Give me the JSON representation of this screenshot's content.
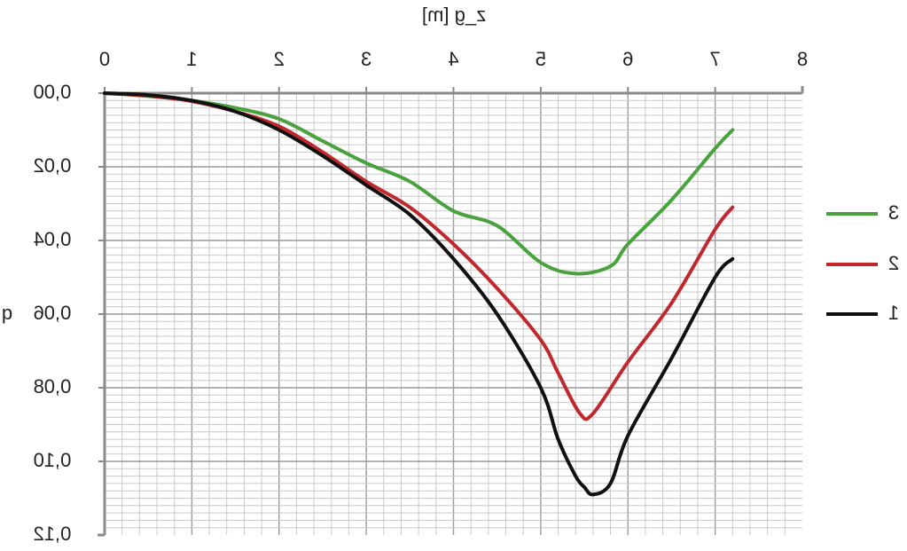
{
  "chart_data": {
    "type": "line",
    "xlabel": "z_g [m]",
    "ylabel": "q",
    "xlim": [
      0,
      8
    ],
    "ylim": [
      0,
      0.12
    ],
    "x_ticks": [
      "0",
      "1",
      "2",
      "3",
      "4",
      "5",
      "6",
      "7",
      "8"
    ],
    "y_ticks": [
      "0,00",
      "0,02",
      "0,04",
      "0,06",
      "0,08",
      "0,10",
      "0,12"
    ],
    "grid": true,
    "mirrored": true,
    "legend_position": "right",
    "series": [
      {
        "name": "1",
        "color": "#111111",
        "x": [
          0,
          0.5,
          1,
          1.5,
          2,
          2.5,
          3,
          3.5,
          4,
          4.5,
          5,
          5.2,
          5.4,
          5.5,
          5.6,
          5.8,
          6,
          6.5,
          7,
          7.2
        ],
        "y": [
          0,
          0.0005,
          0.002,
          0.005,
          0.01,
          0.017,
          0.025,
          0.033,
          0.045,
          0.06,
          0.08,
          0.094,
          0.104,
          0.107,
          0.109,
          0.106,
          0.093,
          0.072,
          0.05,
          0.045
        ]
      },
      {
        "name": "2",
        "color": "#c0282d",
        "x": [
          0,
          0.5,
          1,
          1.5,
          2,
          2.5,
          3,
          3.5,
          4,
          4.5,
          5,
          5.2,
          5.45,
          5.6,
          6,
          6.5,
          7,
          7.2
        ],
        "y": [
          0,
          0.0007,
          0.0022,
          0.005,
          0.009,
          0.016,
          0.024,
          0.031,
          0.041,
          0.053,
          0.067,
          0.076,
          0.087,
          0.087,
          0.073,
          0.057,
          0.037,
          0.031
        ]
      },
      {
        "name": "3",
        "color": "#4aa23f",
        "x": [
          0,
          0.5,
          1,
          1.5,
          2,
          2.5,
          3,
          3.5,
          4,
          4.5,
          5,
          5.4,
          5.8,
          6,
          6.5,
          7,
          7.2
        ],
        "y": [
          0,
          0.0008,
          0.002,
          0.004,
          0.007,
          0.013,
          0.019,
          0.024,
          0.032,
          0.036,
          0.046,
          0.049,
          0.047,
          0.041,
          0.029,
          0.015,
          0.01
        ]
      }
    ]
  }
}
